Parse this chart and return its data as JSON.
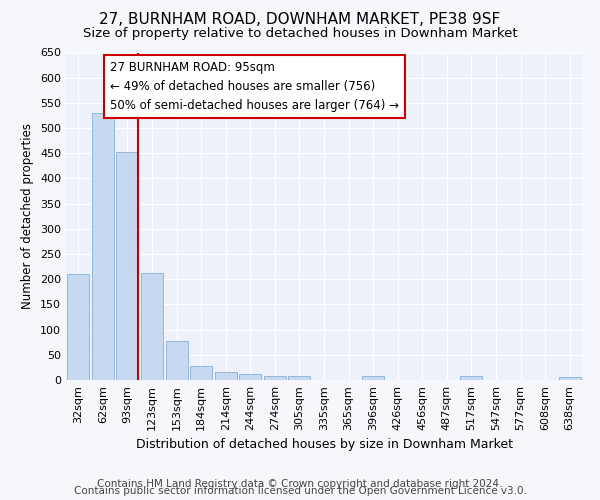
{
  "title": "27, BURNHAM ROAD, DOWNHAM MARKET, PE38 9SF",
  "subtitle": "Size of property relative to detached houses in Downham Market",
  "xlabel": "Distribution of detached houses by size in Downham Market",
  "ylabel": "Number of detached properties",
  "categories": [
    "32sqm",
    "62sqm",
    "93sqm",
    "123sqm",
    "153sqm",
    "184sqm",
    "214sqm",
    "244sqm",
    "274sqm",
    "305sqm",
    "335sqm",
    "365sqm",
    "396sqm",
    "426sqm",
    "456sqm",
    "487sqm",
    "517sqm",
    "547sqm",
    "577sqm",
    "608sqm",
    "638sqm"
  ],
  "values": [
    210,
    530,
    452,
    213,
    78,
    27,
    15,
    12,
    8,
    8,
    0,
    0,
    7,
    0,
    0,
    0,
    7,
    0,
    0,
    0,
    5
  ],
  "bar_color": "#c6d9f0",
  "bar_edge_color": "#8ab0d8",
  "highlight_bar_index": 2,
  "highlight_line_color": "#cc0000",
  "annotation_text": "27 BURNHAM ROAD: 95sqm\n← 49% of detached houses are smaller (756)\n50% of semi-detached houses are larger (764) →",
  "annotation_box_color": "#ffffff",
  "annotation_box_edge_color": "#cc0000",
  "ylim": [
    0,
    650
  ],
  "yticks": [
    0,
    50,
    100,
    150,
    200,
    250,
    300,
    350,
    400,
    450,
    500,
    550,
    600,
    650
  ],
  "footer1": "Contains HM Land Registry data © Crown copyright and database right 2024.",
  "footer2": "Contains public sector information licensed under the Open Government Licence v3.0.",
  "background_color": "#f5f7fc",
  "axes_background_color": "#edf1f9",
  "grid_color": "#ffffff",
  "title_fontsize": 11,
  "subtitle_fontsize": 9.5,
  "xlabel_fontsize": 9,
  "ylabel_fontsize": 8.5,
  "tick_fontsize": 8,
  "annotation_fontsize": 8.5,
  "footer_fontsize": 7.5
}
